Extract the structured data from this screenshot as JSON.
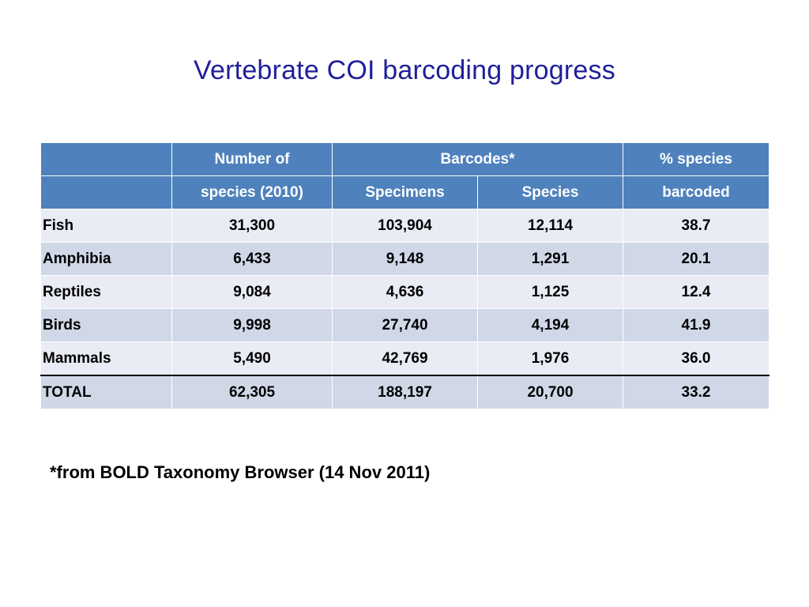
{
  "slide": {
    "title": "Vertebrate COI barcoding progress",
    "footnote": "*from BOLD Taxonomy Browser (14 Nov 2011)"
  },
  "table": {
    "header_row1": {
      "col1": "Number of",
      "col2_3": "Barcodes*",
      "col4": "% species"
    },
    "header_row2": {
      "col1": "species (2010)",
      "col2": "Specimens",
      "col3": "Species",
      "col4": "barcoded"
    },
    "rows": [
      {
        "group": "Fish",
        "species_2010": "31,300",
        "specimens": "103,904",
        "species": "12,114",
        "pct_barcoded": "38.7"
      },
      {
        "group": "Amphibia",
        "species_2010": "6,433",
        "specimens": "9,148",
        "species": "1,291",
        "pct_barcoded": "20.1"
      },
      {
        "group": "Reptiles",
        "species_2010": "9,084",
        "specimens": "4,636",
        "species": "1,125",
        "pct_barcoded": "12.4"
      },
      {
        "group": "Birds",
        "species_2010": "9,998",
        "specimens": "27,740",
        "species": "4,194",
        "pct_barcoded": "41.9"
      },
      {
        "group": "Mammals",
        "species_2010": "5,490",
        "specimens": "42,769",
        "species": "1,976",
        "pct_barcoded": "36.0"
      },
      {
        "group": "TOTAL",
        "species_2010": "62,305",
        "specimens": "188,197",
        "species": "20,700",
        "pct_barcoded": "33.2"
      }
    ]
  },
  "colors": {
    "title": "#1f1f9a",
    "header_fill": "#4f81bd",
    "row_light": "#e9ebf5",
    "row_dark": "#d0d8e8"
  }
}
